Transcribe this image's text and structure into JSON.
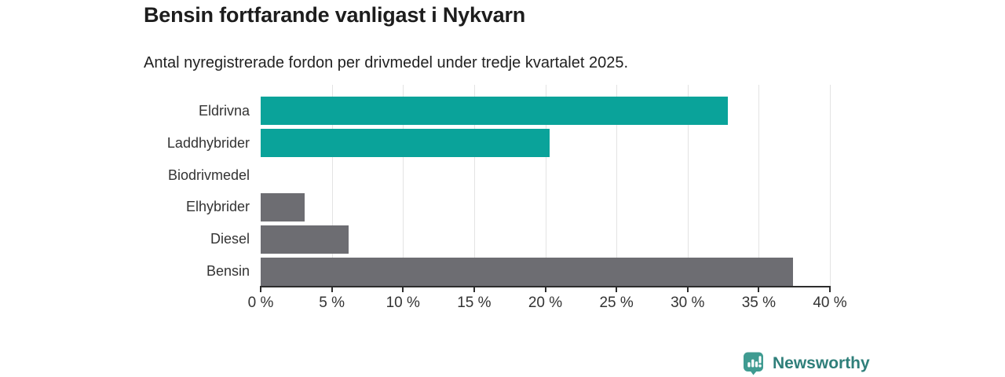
{
  "header": {
    "title": "Bensin fortfarande vanligast i Nykvarn",
    "subtitle": "Antal nyregistrerade fordon per drivmedel under tredje kvartalet 2025."
  },
  "chart_data": {
    "type": "bar",
    "orientation": "horizontal",
    "title": "Bensin fortfarande vanligast i Nykvarn",
    "subtitle": "Antal nyregistrerade fordon per drivmedel under tredje kvartalet 2025.",
    "categories": [
      "Eldrivna",
      "Laddhybrider",
      "Biodrivmedel",
      "Elhybrider",
      "Diesel",
      "Bensin"
    ],
    "values": [
      32.8,
      20.3,
      0,
      3.1,
      6.2,
      37.4
    ],
    "unit": "%",
    "xlim": [
      0,
      40
    ],
    "x_tick_step": 5,
    "x_tick_labels": [
      "0 %",
      "5 %",
      "10 %",
      "15 %",
      "20 %",
      "25 %",
      "30 %",
      "35 %",
      "40 %"
    ],
    "grid": true,
    "legend": false,
    "bar_colors": [
      "#0aa39a",
      "#0aa39a",
      "#6d6d72",
      "#6d6d72",
      "#6d6d72",
      "#6d6d72"
    ],
    "colors": {
      "teal_bar": "#0aa39a",
      "gray_bar": "#6d6d72",
      "gridline": "#e3e3e3",
      "axis_line": "#2d2d2d",
      "text": "#333333"
    }
  },
  "footer": {
    "brand": "Newsworthy",
    "brand_text_color": "#2f7f7a",
    "brand_icon": "newsworthy-speech-bubble-bar-chart-icon",
    "brand_icon_color": "#3f9b91"
  }
}
